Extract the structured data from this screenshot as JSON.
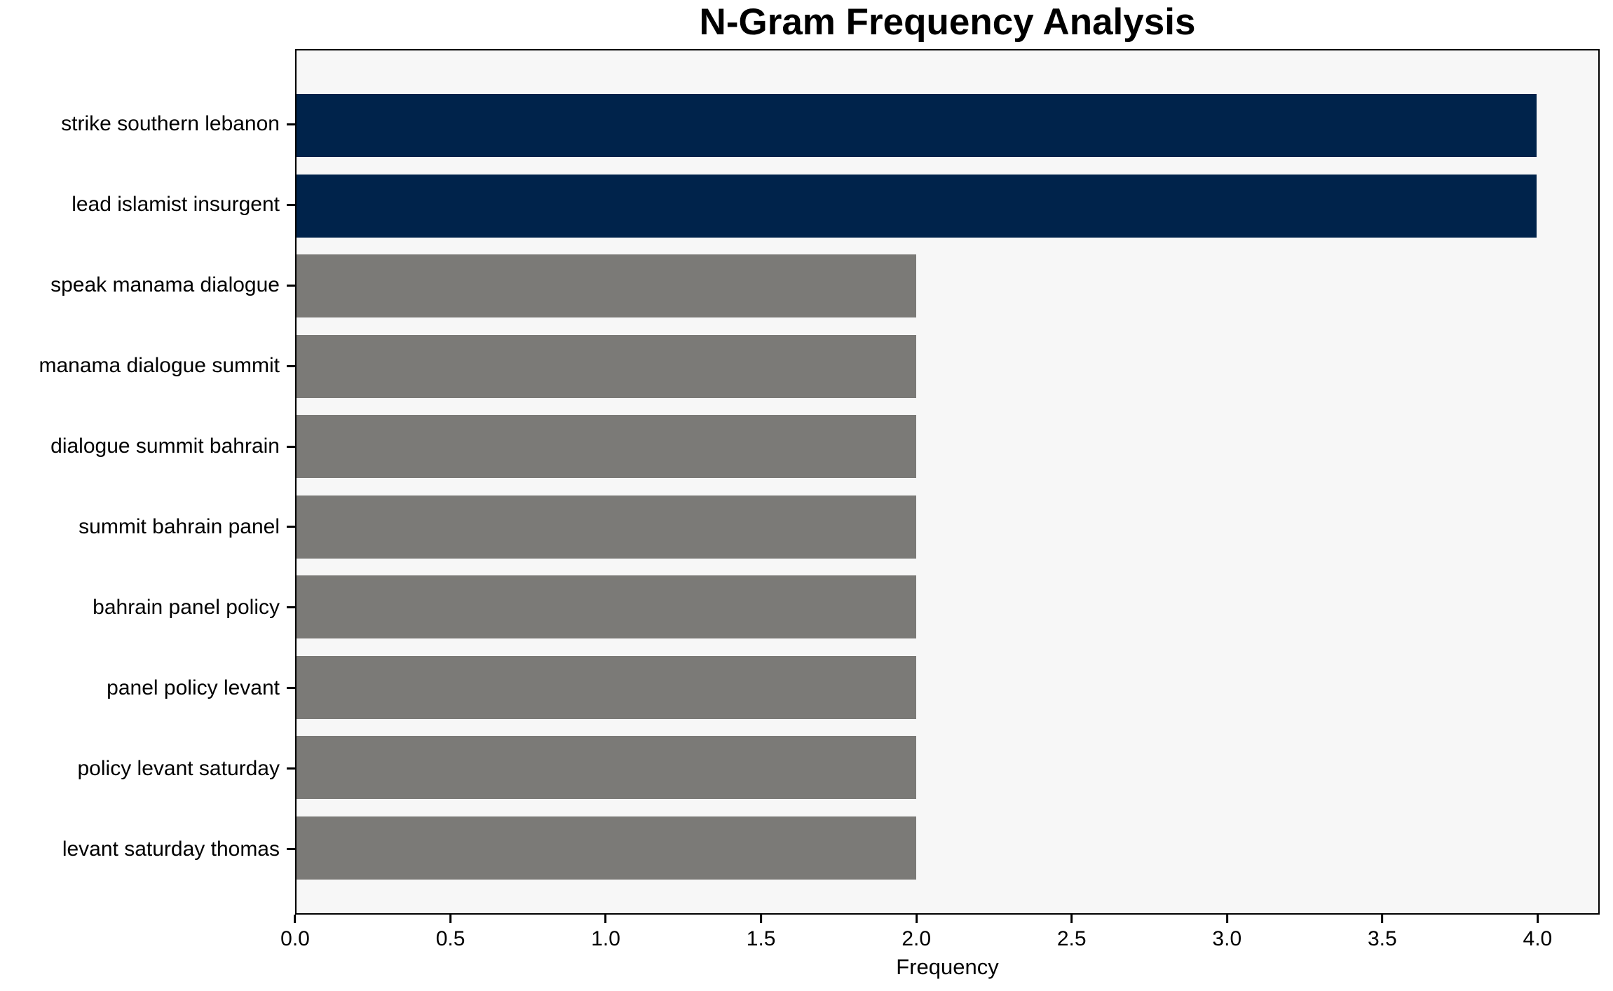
{
  "chart_data": {
    "type": "bar",
    "orientation": "horizontal",
    "title": "N-Gram Frequency Analysis",
    "xlabel": "Frequency",
    "ylabel": "",
    "categories": [
      "strike southern lebanon",
      "lead islamist insurgent",
      "speak manama dialogue",
      "manama dialogue summit",
      "dialogue summit bahrain",
      "summit bahrain panel",
      "bahrain panel policy",
      "panel policy levant",
      "policy levant saturday",
      "levant saturday thomas"
    ],
    "values": [
      4,
      4,
      2,
      2,
      2,
      2,
      2,
      2,
      2,
      2
    ],
    "bar_colors": [
      "#00234B",
      "#00234B",
      "#7B7A77",
      "#7B7A77",
      "#7B7A77",
      "#7B7A77",
      "#7B7A77",
      "#7B7A77",
      "#7B7A77",
      "#7B7A77"
    ],
    "xlim": [
      0,
      4.2
    ],
    "xtick_values": [
      0,
      0.5,
      1.0,
      1.5,
      2.0,
      2.5,
      3.0,
      3.5,
      4.0
    ],
    "xtick_labels": [
      "0.0",
      "0.5",
      "1.0",
      "1.5",
      "2.0",
      "2.5",
      "3.0",
      "3.5",
      "4.0"
    ],
    "grid": false,
    "legend": null,
    "colors": {
      "highlight_navy": "#00234B",
      "default_gray": "#7B7A77",
      "plot_background": "#F7F7F7",
      "figure_background": "#FFFFFF",
      "spine": "#000000",
      "text": "#000000"
    }
  }
}
